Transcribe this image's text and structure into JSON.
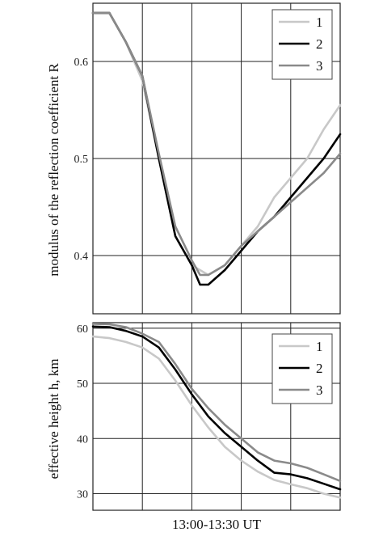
{
  "shared_xlabel": "13:00-13:30 UT",
  "chart_data": [
    {
      "type": "line",
      "ylabel": "modulus of the reflection coefficient R",
      "ylim": [
        0.34,
        0.66
      ],
      "yticks": [
        0.4,
        0.5,
        0.6
      ],
      "ytick_labels": [
        "0.4",
        "0.5",
        "0.6"
      ],
      "xlim": [
        0,
        30
      ],
      "grid": true,
      "legend": "top-right",
      "series": [
        {
          "name": "1",
          "color": "#c8c8c8",
          "x": [
            0,
            2,
            4,
            6,
            8,
            10,
            12,
            13,
            14,
            16,
            18,
            20,
            22,
            24,
            26,
            28,
            30
          ],
          "y": [
            0.65,
            0.65,
            0.62,
            0.58,
            0.5,
            0.42,
            0.39,
            0.385,
            0.38,
            0.39,
            0.41,
            0.43,
            0.46,
            0.48,
            0.5,
            0.53,
            0.555
          ]
        },
        {
          "name": "2",
          "color": "#000000",
          "x": [
            0,
            2,
            4,
            6,
            8,
            10,
            12,
            13,
            14,
            16,
            18,
            20,
            22,
            24,
            26,
            28,
            30
          ],
          "y": [
            0.65,
            0.65,
            0.62,
            0.585,
            0.5,
            0.42,
            0.39,
            0.37,
            0.37,
            0.385,
            0.405,
            0.425,
            0.44,
            0.46,
            0.48,
            0.5,
            0.525
          ]
        },
        {
          "name": "3",
          "color": "#8a8a8a",
          "x": [
            0,
            2,
            4,
            6,
            8,
            10,
            12,
            13,
            14,
            16,
            18,
            20,
            22,
            24,
            26,
            28,
            30
          ],
          "y": [
            0.65,
            0.65,
            0.62,
            0.585,
            0.505,
            0.43,
            0.395,
            0.38,
            0.38,
            0.39,
            0.41,
            0.425,
            0.44,
            0.455,
            0.47,
            0.485,
            0.505
          ]
        }
      ]
    },
    {
      "type": "line",
      "ylabel": "effective height h, km",
      "ylim": [
        27,
        61
      ],
      "yticks": [
        30,
        40,
        50,
        60
      ],
      "ytick_labels": [
        "30",
        "40",
        "50",
        "60"
      ],
      "xlim": [
        0,
        30
      ],
      "grid": true,
      "legend": "top-right",
      "series": [
        {
          "name": "1",
          "color": "#c8c8c8",
          "x": [
            0,
            2,
            4,
            6,
            8,
            10,
            12,
            14,
            16,
            18,
            20,
            22,
            24,
            26,
            28,
            30
          ],
          "y": [
            58.5,
            58.2,
            57.5,
            56.5,
            54.5,
            50.5,
            46,
            42,
            38.5,
            36,
            34,
            32.5,
            31.7,
            31,
            30,
            29.3
          ]
        },
        {
          "name": "2",
          "color": "#000000",
          "x": [
            0,
            2,
            4,
            6,
            8,
            10,
            12,
            14,
            16,
            18,
            20,
            22,
            24,
            26,
            28,
            30
          ],
          "y": [
            60.3,
            60.2,
            59.5,
            58.5,
            56.5,
            52.5,
            48,
            44,
            41,
            38.5,
            36,
            33.8,
            33.5,
            32.8,
            31.8,
            30.8
          ]
        },
        {
          "name": "3",
          "color": "#8a8a8a",
          "x": [
            0,
            2,
            4,
            6,
            8,
            10,
            12,
            14,
            16,
            18,
            20,
            22,
            24,
            26,
            28,
            30
          ],
          "y": [
            60.8,
            60.7,
            60.2,
            59,
            57.5,
            53.5,
            49,
            45.5,
            42.5,
            40,
            37.5,
            36,
            35.5,
            34.7,
            33.5,
            32.3
          ]
        }
      ]
    }
  ]
}
